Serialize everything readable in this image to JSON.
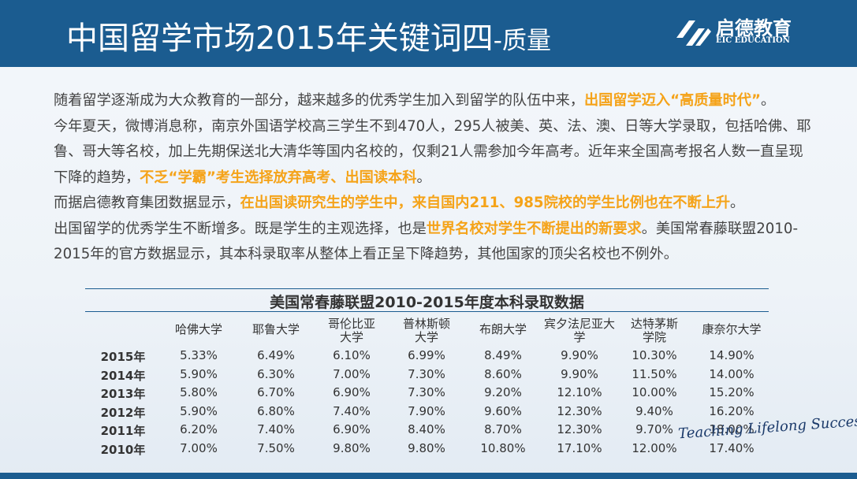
{
  "header": {
    "title": "中国留学市场2015年关键词四",
    "title_suffix": "-质量",
    "logo_name": "启德教育",
    "logo_sub": "EIC EDUCATION"
  },
  "paragraphs": [
    {
      "segments": [
        {
          "text": "随着留学逐渐成为大众教育的一部分，越来越多的优秀学生加入到留学的队伍中来，",
          "highlight": false
        },
        {
          "text": "出国留学迈入“高质量时代”",
          "highlight": true
        },
        {
          "text": "。",
          "highlight": false
        }
      ]
    },
    {
      "segments": [
        {
          "text": "今年夏天，微博消息称，南京外国语学校高三学生不到470人，295人被美、英、法、澳、日等大学录取，包括哈佛、耶鲁、哥大等名校，加上先期保送北大清华等国内名校的，仅剩21人需参加今年高考。近年来全国高考报名人数一直呈现下降的趋势，",
          "highlight": false
        },
        {
          "text": "不乏“学霸”考生选择放弃高考、出国读本科",
          "highlight": true
        },
        {
          "text": "。",
          "highlight": false
        }
      ]
    },
    {
      "segments": [
        {
          "text": "而据启德教育集团数据显示，",
          "highlight": false
        },
        {
          "text": "在出国读研究生的学生中，来自国内211、985院校的学生比例也在不断上升",
          "highlight": true
        },
        {
          "text": "。",
          "highlight": false
        }
      ]
    },
    {
      "segments": [
        {
          "text": "出国留学的优秀学生不断增多。既是学生的主观选择，也是",
          "highlight": false
        },
        {
          "text": "世界名校对学生不断提出的新要求",
          "highlight": true
        },
        {
          "text": "。美国常春藤联盟2010-2015年的官方数据显示，其本科录取率从整体上看正呈下降趋势，其他国家的顶尖名校也不例外。",
          "highlight": false
        }
      ]
    }
  ],
  "table": {
    "title": "美国常春藤联盟2010-2015年度本科录取数据",
    "columns": [
      [
        "哈佛大学"
      ],
      [
        "耶鲁大学"
      ],
      [
        "哥伦比亚",
        "大学"
      ],
      [
        "普林斯顿",
        "大学"
      ],
      [
        "布朗大学"
      ],
      [
        "宾夕法尼亚大",
        "学"
      ],
      [
        "达特茅斯",
        "学院"
      ],
      [
        "康奈尔大学"
      ]
    ],
    "rows": [
      {
        "year": "2015年",
        "cells": [
          "5.33%",
          "6.49%",
          "6.10%",
          "6.99%",
          "8.49%",
          "9.90%",
          "10.30%",
          "14.90%"
        ]
      },
      {
        "year": "2014年",
        "cells": [
          "5.90%",
          "6.30%",
          "7.00%",
          "7.30%",
          "8.60%",
          "9.90%",
          "11.50%",
          "14.00%"
        ]
      },
      {
        "year": "2013年",
        "cells": [
          "5.80%",
          "6.70%",
          "6.90%",
          "7.30%",
          "9.20%",
          "12.10%",
          "10.00%",
          "15.20%"
        ]
      },
      {
        "year": "2012年",
        "cells": [
          "5.90%",
          "6.80%",
          "7.40%",
          "7.90%",
          "9.60%",
          "12.30%",
          "9.40%",
          "16.20%"
        ]
      },
      {
        "year": "2011年",
        "cells": [
          "6.20%",
          "7.40%",
          "6.90%",
          "8.40%",
          "8.70%",
          "12.30%",
          "9.70%",
          "18.00%"
        ]
      },
      {
        "year": "2010年",
        "cells": [
          "7.00%",
          "7.50%",
          "9.80%",
          "9.80%",
          "10.80%",
          "17.10%",
          "12.00%",
          "17.40%"
        ]
      }
    ]
  },
  "watermark": "Teaching Lifelong Success"
}
